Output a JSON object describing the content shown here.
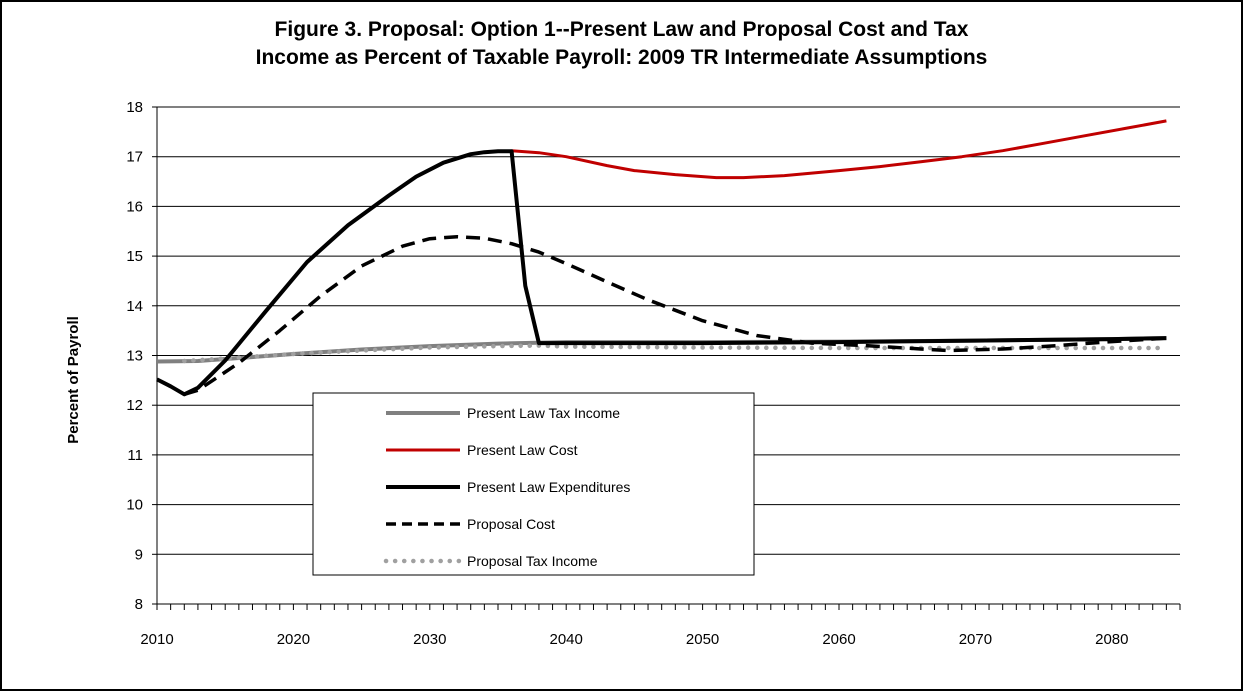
{
  "chart_data": {
    "type": "line",
    "title_line1": "Figure 3. Proposal: Option 1--Present Law and Proposal Cost and Tax",
    "title_line2": "Income as Percent of Taxable Payroll: 2009 TR Intermediate Assumptions",
    "xlabel": "",
    "ylabel": "Percent of Payroll",
    "xlim": [
      2010,
      2085
    ],
    "ylim": [
      8,
      18
    ],
    "xticks": [
      2010,
      2020,
      2030,
      2040,
      2050,
      2060,
      2070,
      2080
    ],
    "yticks": [
      8,
      9,
      10,
      11,
      12,
      13,
      14,
      15,
      16,
      17,
      18
    ],
    "grid": "horizontal",
    "legend_placement": "lower-center",
    "series": [
      {
        "name": "Present Law Tax Income",
        "color": "#808080",
        "style": "solid-thick",
        "x": [
          2010,
          2013,
          2015,
          2020,
          2025,
          2030,
          2035,
          2040,
          2050,
          2060,
          2070,
          2080,
          2084
        ],
        "y": [
          12.88,
          12.89,
          12.93,
          13.03,
          13.12,
          13.19,
          13.24,
          13.27,
          13.27,
          13.28,
          13.3,
          13.33,
          13.35
        ]
      },
      {
        "name": "Present Law Cost",
        "color": "#c00000",
        "style": "solid",
        "x": [
          2036,
          2038,
          2040,
          2043,
          2045,
          2048,
          2051,
          2053,
          2056,
          2060,
          2063,
          2066,
          2069,
          2072,
          2075,
          2078,
          2081,
          2084
        ],
        "y": [
          17.12,
          17.08,
          17.0,
          16.82,
          16.72,
          16.64,
          16.58,
          16.58,
          16.62,
          16.72,
          16.8,
          16.9,
          17.0,
          17.12,
          17.27,
          17.42,
          17.57,
          17.72
        ]
      },
      {
        "name": "Present Law Expenditures",
        "color": "#000000",
        "style": "solid-thick",
        "x": [
          2010,
          2011,
          2012,
          2013,
          2015,
          2018,
          2021,
          2024,
          2027,
          2029,
          2031,
          2033,
          2034,
          2035,
          2036,
          2037,
          2038,
          2040,
          2050,
          2060,
          2070,
          2080,
          2084
        ],
        "y": [
          12.52,
          12.38,
          12.22,
          12.35,
          12.9,
          13.9,
          14.88,
          15.62,
          16.22,
          16.6,
          16.88,
          17.05,
          17.09,
          17.11,
          17.11,
          14.4,
          13.25,
          13.25,
          13.25,
          13.27,
          13.3,
          13.33,
          13.35
        ]
      },
      {
        "name": "Proposal Cost",
        "color": "#000000",
        "style": "dashed",
        "x": [
          2012,
          2013,
          2016,
          2019,
          2022,
          2025,
          2028,
          2030,
          2032,
          2034,
          2036,
          2038,
          2040,
          2043,
          2046,
          2050,
          2054,
          2058,
          2062,
          2066,
          2068,
          2072,
          2076,
          2080,
          2084
        ],
        "y": [
          12.22,
          12.3,
          12.85,
          13.5,
          14.2,
          14.8,
          15.2,
          15.35,
          15.39,
          15.36,
          15.25,
          15.08,
          14.85,
          14.48,
          14.12,
          13.7,
          13.4,
          13.25,
          13.2,
          13.13,
          13.1,
          13.13,
          13.2,
          13.28,
          13.35
        ]
      },
      {
        "name": "Proposal Tax Income",
        "color": "#a0a0a0",
        "style": "dotted",
        "x": [
          2012,
          2015,
          2020,
          2025,
          2030,
          2035,
          2038,
          2040,
          2050,
          2060,
          2070,
          2080,
          2084
        ],
        "y": [
          12.89,
          12.94,
          13.03,
          13.1,
          13.16,
          13.19,
          13.2,
          13.18,
          13.16,
          13.15,
          13.15,
          13.15,
          13.15
        ]
      }
    ]
  }
}
